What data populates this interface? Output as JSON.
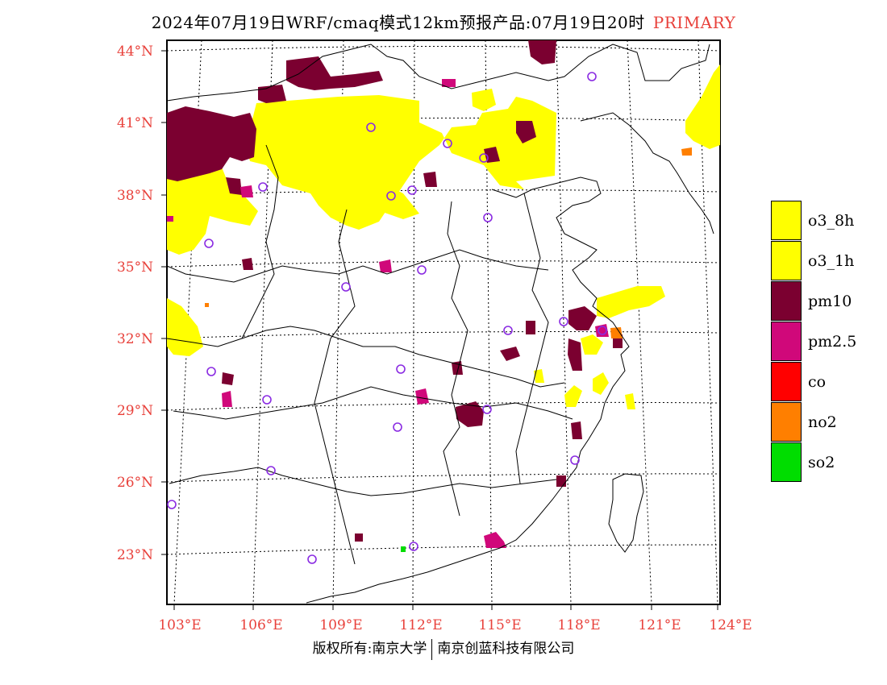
{
  "title": {
    "main": "2024年07月19日WRF/cmaq模式12km预报产品:07月19日20时",
    "tag": "PRIMARY",
    "tag_color": "#e8413b"
  },
  "axes": {
    "lat_labels": [
      "44°N",
      "41°N",
      "38°N",
      "35°N",
      "32°N",
      "29°N",
      "26°N",
      "23°N"
    ],
    "lon_labels": [
      "103°E",
      "106°E",
      "109°E",
      "112°E",
      "115°E",
      "118°E",
      "121°E",
      "124°E"
    ],
    "label_color": "#e8413b"
  },
  "legend": {
    "items": [
      {
        "label": "o3_8h",
        "color": "#ffff00"
      },
      {
        "label": "o3_1h",
        "color": "#ffff00"
      },
      {
        "label": "pm10",
        "color": "#7b0030"
      },
      {
        "label": "pm2.5",
        "color": "#d0087a"
      },
      {
        "label": "co",
        "color": "#ff0000"
      },
      {
        "label": "no2",
        "color": "#ff7f00"
      },
      {
        "label": "so2",
        "color": "#00dd00"
      }
    ]
  },
  "footer": {
    "left": "版权所有:南京大学",
    "right": "南京创蓝科技有限公司"
  },
  "map": {
    "station_marker_color": "#8a2be2",
    "dominant_pollutants_shown": [
      "o3_8h",
      "pm10",
      "pm2.5",
      "no2",
      "so2"
    ]
  }
}
